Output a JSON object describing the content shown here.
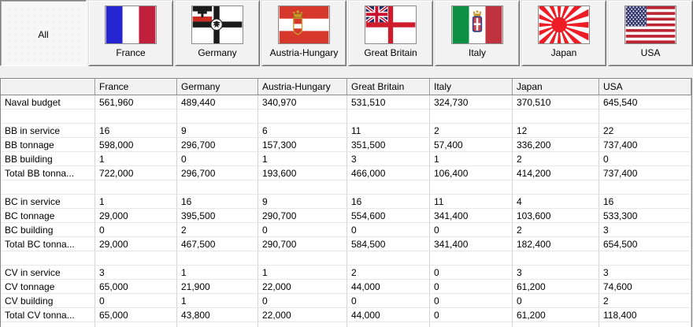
{
  "colors": {
    "window_bg": "#f0f0f0",
    "table_bg": "#ffffff",
    "text": "#000000",
    "gridline_vertical": "#d4d4d4",
    "gridline_horizontal": "#e8e8e8",
    "button_face": "#f2f2f2"
  },
  "nation_buttons": [
    {
      "label": "All",
      "flag": null,
      "selected": true
    },
    {
      "label": "France",
      "flag": "france",
      "selected": false
    },
    {
      "label": "Germany",
      "flag": "germany",
      "selected": false
    },
    {
      "label": "Austria-Hungary",
      "flag": "austria-hungary",
      "selected": false
    },
    {
      "label": "Great Britain",
      "flag": "great-britain",
      "selected": false
    },
    {
      "label": "Italy",
      "flag": "italy",
      "selected": false
    },
    {
      "label": "Japan",
      "flag": "japan",
      "selected": false
    },
    {
      "label": "USA",
      "flag": "usa",
      "selected": false
    }
  ],
  "table": {
    "columns": [
      "",
      "France",
      "Germany",
      "Austria-Hungary",
      "Great Britain",
      "Italy",
      "Japan",
      "USA"
    ],
    "rows": [
      {
        "label": "Naval budget",
        "values": [
          "561,960",
          "489,440",
          "340,970",
          "531,510",
          "324,730",
          "370,510",
          "645,540"
        ]
      },
      {
        "label": "",
        "values": [
          "",
          "",
          "",
          "",
          "",
          "",
          ""
        ]
      },
      {
        "label": "BB in service",
        "values": [
          "16",
          "9",
          "6",
          "11",
          "2",
          "12",
          "22"
        ]
      },
      {
        "label": "BB tonnage",
        "values": [
          "598,000",
          "296,700",
          "157,300",
          "351,500",
          "57,400",
          "336,200",
          "737,400"
        ]
      },
      {
        "label": "BB building",
        "values": [
          "1",
          "0",
          "1",
          "3",
          "1",
          "2",
          "0"
        ]
      },
      {
        "label": "Total BB tonna...",
        "values": [
          "722,000",
          "296,700",
          "193,600",
          "466,000",
          "106,400",
          "414,200",
          "737,400"
        ]
      },
      {
        "label": "",
        "values": [
          "",
          "",
          "",
          "",
          "",
          "",
          ""
        ]
      },
      {
        "label": "BC in service",
        "values": [
          "1",
          "16",
          "9",
          "16",
          "11",
          "4",
          "16"
        ]
      },
      {
        "label": "BC tonnage",
        "values": [
          "29,000",
          "395,500",
          "290,700",
          "554,600",
          "341,400",
          "103,600",
          "533,300"
        ]
      },
      {
        "label": "BC building",
        "values": [
          "0",
          "2",
          "0",
          "0",
          "0",
          "2",
          "3"
        ]
      },
      {
        "label": "Total BC tonna...",
        "values": [
          "29,000",
          "467,500",
          "290,700",
          "584,500",
          "341,400",
          "182,400",
          "654,500"
        ]
      },
      {
        "label": "",
        "values": [
          "",
          "",
          "",
          "",
          "",
          "",
          ""
        ]
      },
      {
        "label": "CV in service",
        "values": [
          "3",
          "1",
          "1",
          "2",
          "0",
          "3",
          "3"
        ]
      },
      {
        "label": "CV tonnage",
        "values": [
          "65,000",
          "21,900",
          "22,000",
          "44,000",
          "0",
          "61,200",
          "74,600"
        ]
      },
      {
        "label": "CV building",
        "values": [
          "0",
          "1",
          "0",
          "0",
          "0",
          "0",
          "2"
        ]
      },
      {
        "label": "Total CV tonna...",
        "values": [
          "65,000",
          "43,800",
          "22,000",
          "44,000",
          "0",
          "61,200",
          "118,400"
        ]
      },
      {
        "label": "",
        "values": [
          "",
          "",
          "",
          "",
          "",
          "",
          ""
        ]
      }
    ]
  }
}
